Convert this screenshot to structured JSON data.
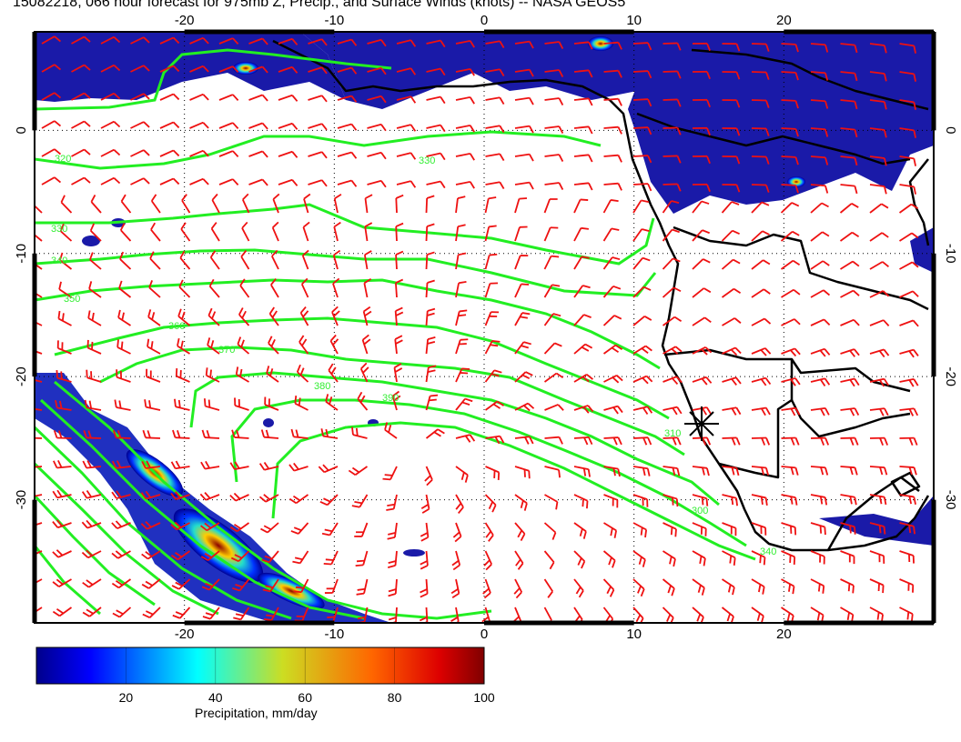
{
  "title": "15082218, 066 hour forecast for 975mb Z, Precip., and Surface Winds (knots) -- NASA GEOS5",
  "map": {
    "lon_range": [
      -30,
      30
    ],
    "lat_range": [
      -40,
      8
    ],
    "lon_ticks": [
      "-20",
      "-10",
      "0",
      "10",
      "20"
    ],
    "lat_ticks": [
      "0",
      "-10",
      "-20",
      "-30"
    ],
    "grid": "dotted",
    "colors": {
      "contour": "#22ee22",
      "wind_barb": "#ee1111",
      "coastline": "#000000",
      "precip_low": "#00008b",
      "precip_high": "#8b0000"
    },
    "contour_labels": [
      "320",
      "330",
      "340",
      "350",
      "360",
      "370",
      "380",
      "390",
      "310",
      "300",
      "340",
      "330"
    ],
    "marker": "station-star"
  },
  "colorbar": {
    "label": "Precipitation, mm/day",
    "min": 0,
    "max": 100,
    "ticks": [
      "20",
      "40",
      "60",
      "80",
      "100"
    ]
  }
}
